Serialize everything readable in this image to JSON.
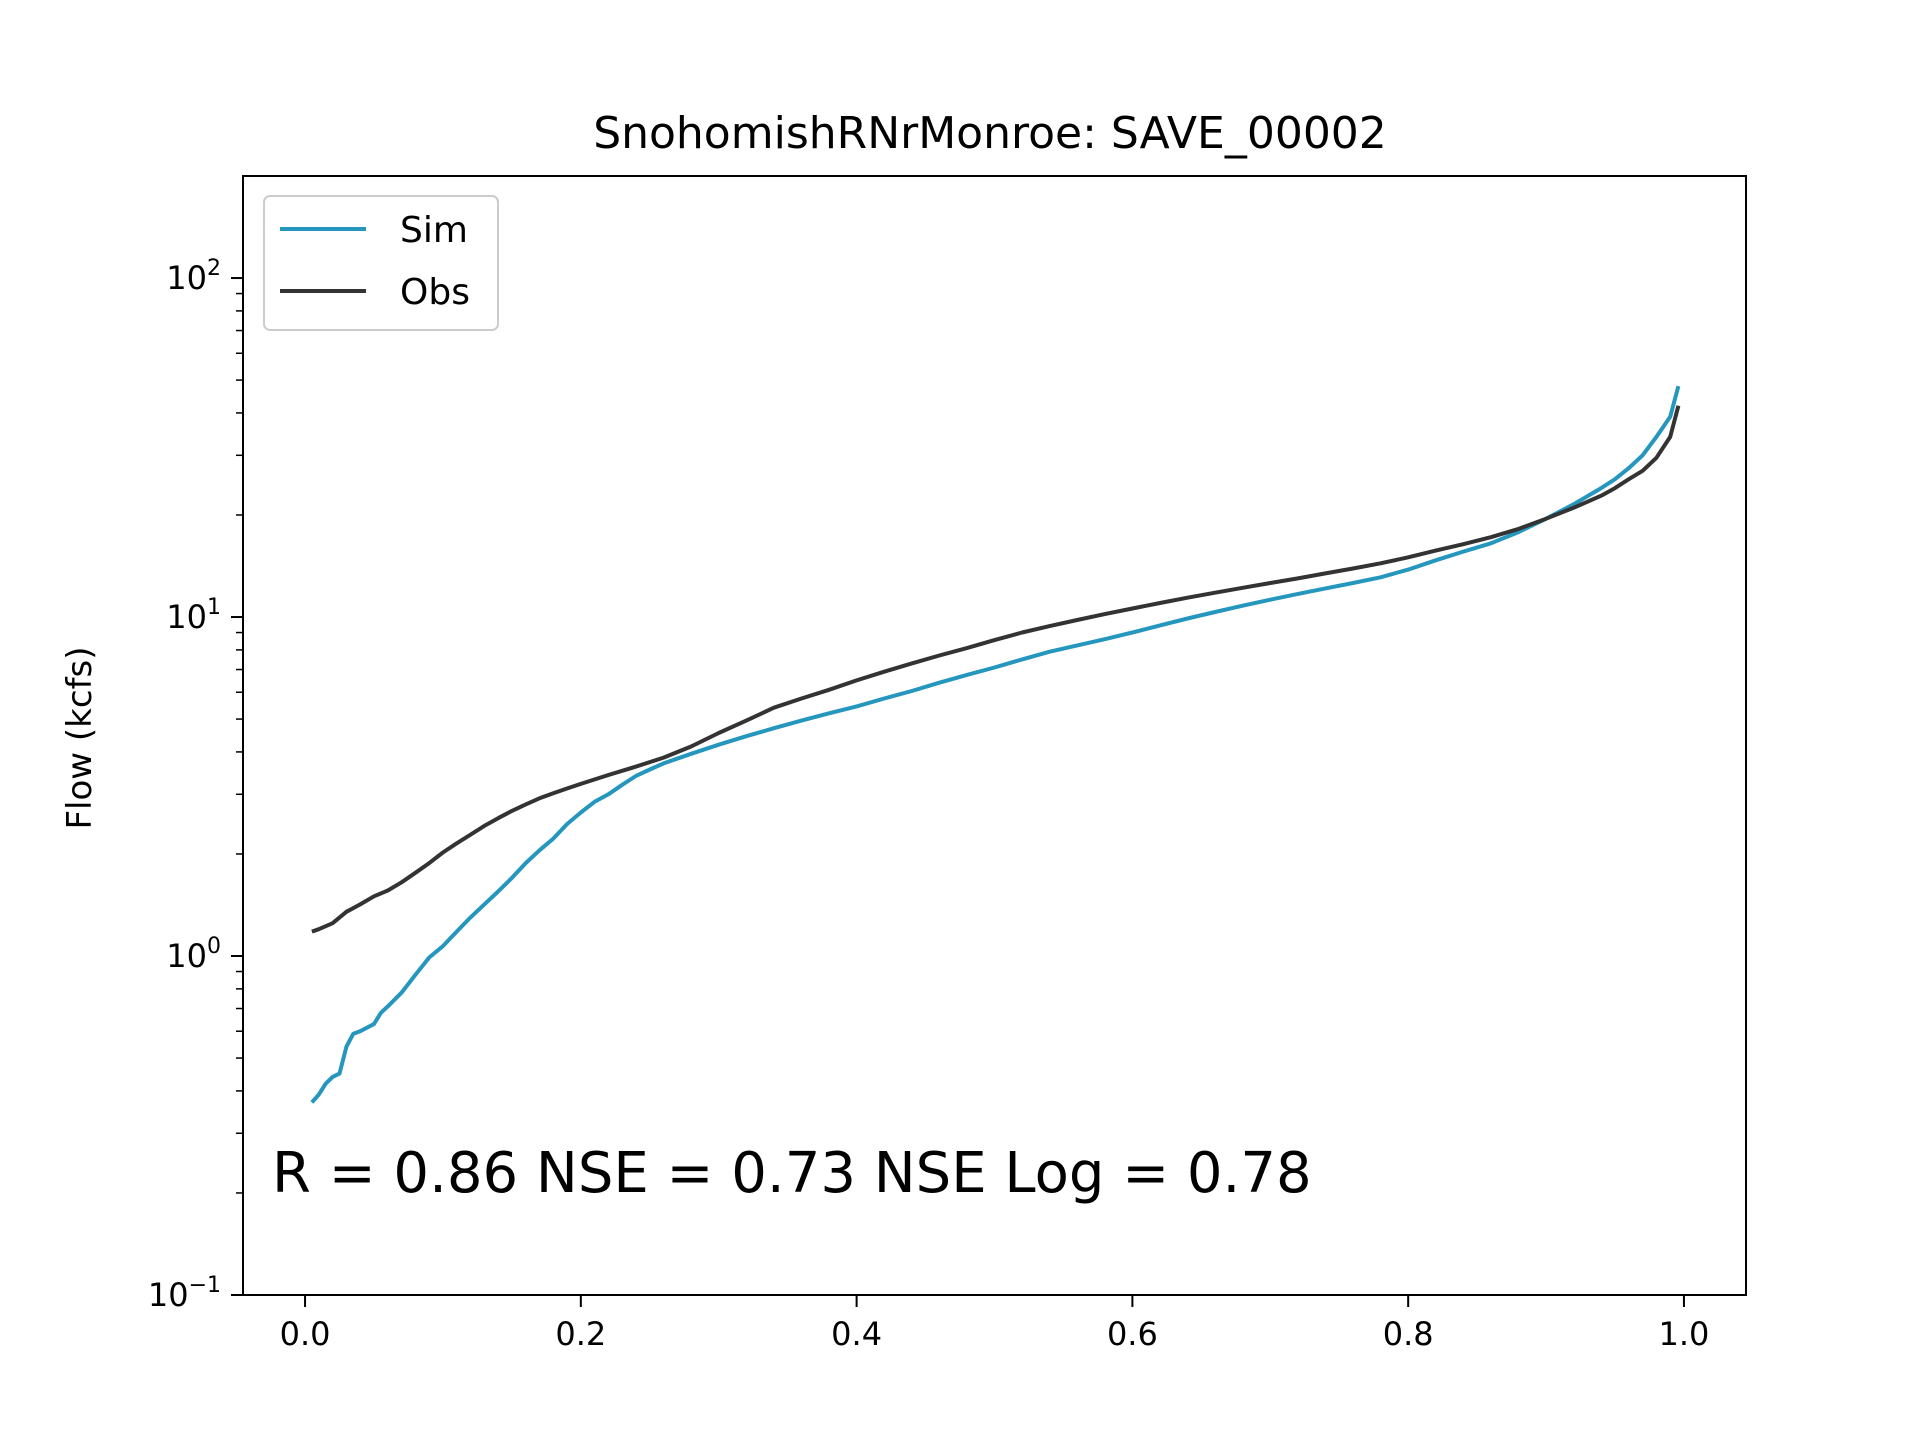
{
  "chart_data": {
    "type": "line",
    "title": "SnohomishRNrMonroe: SAVE_00002",
    "xlabel": "",
    "ylabel": "Flow (kcfs)",
    "xlim": [
      -0.045,
      1.045
    ],
    "ylim": [
      0.1,
      200
    ],
    "yscale": "log",
    "x_ticks": [
      0.0,
      0.2,
      0.4,
      0.6,
      0.8,
      1.0
    ],
    "x_tick_labels": [
      "0.0",
      "0.2",
      "0.4",
      "0.6",
      "0.8",
      "1.0"
    ],
    "y_ticks": [
      {
        "value": 0.1,
        "base": "10",
        "exp": "−1"
      },
      {
        "value": 1,
        "base": "10",
        "exp": "0"
      },
      {
        "value": 10,
        "base": "10",
        "exp": "1"
      },
      {
        "value": 100,
        "base": "10",
        "exp": "2"
      }
    ],
    "grid": false,
    "legend_position": "top-left",
    "annotation": "R = 0.86  NSE = 0.73  NSE Log = 0.78",
    "series": [
      {
        "name": "Sim",
        "color": "#2596be",
        "points": [
          [
            0.005,
            0.37
          ],
          [
            0.01,
            0.39
          ],
          [
            0.015,
            0.42
          ],
          [
            0.02,
            0.44
          ],
          [
            0.025,
            0.45
          ],
          [
            0.03,
            0.54
          ],
          [
            0.035,
            0.59
          ],
          [
            0.04,
            0.6
          ],
          [
            0.05,
            0.63
          ],
          [
            0.055,
            0.68
          ],
          [
            0.06,
            0.71
          ],
          [
            0.07,
            0.78
          ],
          [
            0.08,
            0.88
          ],
          [
            0.09,
            0.99
          ],
          [
            0.1,
            1.07
          ],
          [
            0.11,
            1.18
          ],
          [
            0.12,
            1.3
          ],
          [
            0.13,
            1.42
          ],
          [
            0.14,
            1.55
          ],
          [
            0.15,
            1.7
          ],
          [
            0.16,
            1.88
          ],
          [
            0.17,
            2.05
          ],
          [
            0.18,
            2.22
          ],
          [
            0.19,
            2.45
          ],
          [
            0.2,
            2.65
          ],
          [
            0.21,
            2.85
          ],
          [
            0.22,
            3.0
          ],
          [
            0.23,
            3.2
          ],
          [
            0.24,
            3.4
          ],
          [
            0.25,
            3.55
          ],
          [
            0.26,
            3.7
          ],
          [
            0.28,
            3.95
          ],
          [
            0.3,
            4.2
          ],
          [
            0.32,
            4.45
          ],
          [
            0.34,
            4.7
          ],
          [
            0.36,
            4.95
          ],
          [
            0.38,
            5.2
          ],
          [
            0.4,
            5.45
          ],
          [
            0.42,
            5.75
          ],
          [
            0.44,
            6.05
          ],
          [
            0.46,
            6.4
          ],
          [
            0.48,
            6.75
          ],
          [
            0.5,
            7.1
          ],
          [
            0.52,
            7.5
          ],
          [
            0.54,
            7.9
          ],
          [
            0.56,
            8.25
          ],
          [
            0.58,
            8.6
          ],
          [
            0.6,
            9.0
          ],
          [
            0.62,
            9.45
          ],
          [
            0.64,
            9.9
          ],
          [
            0.66,
            10.35
          ],
          [
            0.68,
            10.8
          ],
          [
            0.7,
            11.25
          ],
          [
            0.72,
            11.7
          ],
          [
            0.74,
            12.15
          ],
          [
            0.76,
            12.6
          ],
          [
            0.78,
            13.1
          ],
          [
            0.8,
            13.8
          ],
          [
            0.82,
            14.7
          ],
          [
            0.84,
            15.6
          ],
          [
            0.86,
            16.5
          ],
          [
            0.88,
            17.8
          ],
          [
            0.9,
            19.5
          ],
          [
            0.92,
            21.5
          ],
          [
            0.94,
            24.0
          ],
          [
            0.95,
            25.5
          ],
          [
            0.96,
            27.5
          ],
          [
            0.97,
            30.0
          ],
          [
            0.98,
            34.0
          ],
          [
            0.99,
            39.0
          ],
          [
            0.996,
            48.0
          ]
        ]
      },
      {
        "name": "Obs",
        "color": "#333333",
        "points": [
          [
            0.005,
            1.18
          ],
          [
            0.01,
            1.2
          ],
          [
            0.02,
            1.25
          ],
          [
            0.03,
            1.35
          ],
          [
            0.04,
            1.42
          ],
          [
            0.05,
            1.5
          ],
          [
            0.06,
            1.56
          ],
          [
            0.07,
            1.65
          ],
          [
            0.08,
            1.76
          ],
          [
            0.09,
            1.88
          ],
          [
            0.1,
            2.02
          ],
          [
            0.11,
            2.15
          ],
          [
            0.12,
            2.28
          ],
          [
            0.13,
            2.42
          ],
          [
            0.14,
            2.55
          ],
          [
            0.15,
            2.68
          ],
          [
            0.16,
            2.8
          ],
          [
            0.17,
            2.92
          ],
          [
            0.18,
            3.02
          ],
          [
            0.19,
            3.12
          ],
          [
            0.2,
            3.22
          ],
          [
            0.22,
            3.42
          ],
          [
            0.24,
            3.62
          ],
          [
            0.26,
            3.85
          ],
          [
            0.28,
            4.15
          ],
          [
            0.3,
            4.55
          ],
          [
            0.32,
            4.95
          ],
          [
            0.34,
            5.4
          ],
          [
            0.36,
            5.75
          ],
          [
            0.38,
            6.1
          ],
          [
            0.4,
            6.5
          ],
          [
            0.42,
            6.9
          ],
          [
            0.44,
            7.3
          ],
          [
            0.46,
            7.7
          ],
          [
            0.48,
            8.1
          ],
          [
            0.5,
            8.55
          ],
          [
            0.52,
            9.0
          ],
          [
            0.54,
            9.4
          ],
          [
            0.56,
            9.8
          ],
          [
            0.58,
            10.2
          ],
          [
            0.6,
            10.6
          ],
          [
            0.62,
            11.0
          ],
          [
            0.64,
            11.4
          ],
          [
            0.66,
            11.8
          ],
          [
            0.68,
            12.2
          ],
          [
            0.7,
            12.6
          ],
          [
            0.72,
            13.0
          ],
          [
            0.74,
            13.45
          ],
          [
            0.76,
            13.9
          ],
          [
            0.78,
            14.4
          ],
          [
            0.8,
            15.0
          ],
          [
            0.82,
            15.7
          ],
          [
            0.84,
            16.4
          ],
          [
            0.86,
            17.2
          ],
          [
            0.88,
            18.2
          ],
          [
            0.9,
            19.5
          ],
          [
            0.92,
            21.0
          ],
          [
            0.94,
            22.8
          ],
          [
            0.95,
            24.0
          ],
          [
            0.96,
            25.5
          ],
          [
            0.97,
            27.0
          ],
          [
            0.98,
            29.5
          ],
          [
            0.99,
            34.0
          ],
          [
            0.996,
            42.0
          ]
        ]
      }
    ]
  }
}
